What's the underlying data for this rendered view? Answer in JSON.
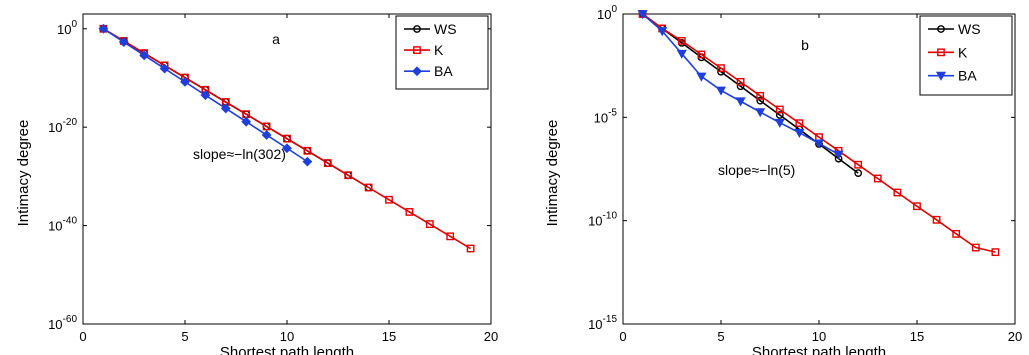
{
  "chart_data": [
    {
      "type": "line",
      "panel_label": "a",
      "xlabel": "Shortest path length",
      "ylabel": "Intimacy degree",
      "xlim": [
        0,
        20
      ],
      "ylim": [
        1e-60,
        1000.0
      ],
      "yscale": "log",
      "xticks": [
        "0",
        "5",
        "10",
        "15",
        "20"
      ],
      "yticks": [
        {
          "base": "10",
          "exp": "0",
          "value": 1
        },
        {
          "base": "10",
          "exp": "-20",
          "value": 1e-20
        },
        {
          "base": "10",
          "exp": "-40",
          "value": 1e-40
        },
        {
          "base": "10",
          "exp": "-60",
          "value": 1e-60
        }
      ],
      "annotation": "slope≈−ln(302)",
      "legend_position": "top-right",
      "series": [
        {
          "name": "WS",
          "color": "#000000",
          "marker": "circle",
          "x": [
            1,
            2,
            3,
            4,
            5,
            6,
            7,
            8,
            9,
            10,
            11,
            12,
            13,
            14
          ],
          "y": [
            1,
            0.0033,
            1.1e-05,
            3.6e-08,
            1.2e-10,
            3.9e-13,
            1.3e-15,
            4.3e-18,
            1.4e-20,
            4.7e-23,
            1.6e-25,
            5e-28,
            1.7e-30,
            5.5e-33
          ]
        },
        {
          "name": "K",
          "color": "#e00000",
          "marker": "square",
          "x": [
            1,
            2,
            3,
            4,
            5,
            6,
            7,
            8,
            9,
            10,
            11,
            12,
            13,
            14,
            15,
            16,
            17,
            18,
            19
          ],
          "y": [
            1,
            0.0033,
            1.1e-05,
            3.6e-08,
            1.2e-10,
            3.9e-13,
            1.3e-15,
            4.3e-18,
            1.4e-20,
            4.7e-23,
            1.6e-25,
            5e-28,
            1.7e-30,
            5.5e-33,
            1.8e-35,
            6e-38,
            2e-40,
            6.5e-43,
            2.2e-45
          ]
        },
        {
          "name": "BA",
          "color": "#1f3fdc",
          "marker": "diamond",
          "x": [
            1,
            2,
            3,
            4,
            5,
            6,
            7,
            8,
            9,
            10,
            11
          ],
          "y": [
            1,
            0.002,
            4e-06,
            8e-09,
            1.6e-11,
            3.2e-14,
            6.4e-17,
            1.3e-19,
            2.6e-22,
            5.2e-25,
            1e-27
          ]
        }
      ]
    },
    {
      "type": "line",
      "panel_label": "b",
      "xlabel": "Shortest path length",
      "ylabel": "Intimacy degree",
      "xlim": [
        0,
        20
      ],
      "ylim": [
        1e-15,
        1
      ],
      "yscale": "log",
      "xticks": [
        "0",
        "5",
        "10",
        "15",
        "20"
      ],
      "yticks": [
        {
          "base": "10",
          "exp": "0",
          "value": 1
        },
        {
          "base": "10",
          "exp": "-5",
          "value": 1e-05
        },
        {
          "base": "10",
          "exp": "-10",
          "value": 1e-10
        },
        {
          "base": "10",
          "exp": "-15",
          "value": 1e-15
        }
      ],
      "annotation": "slope≈−ln(5)",
      "legend_position": "top-right",
      "series": [
        {
          "name": "WS",
          "color": "#000000",
          "marker": "circle",
          "x": [
            1,
            2,
            3,
            4,
            5,
            6,
            7,
            8,
            9,
            10,
            11,
            12
          ],
          "y": [
            1,
            0.2,
            0.04,
            0.008,
            0.0016,
            0.00032,
            6.4e-05,
            1.3e-05,
            2.6e-06,
            5.1e-07,
            1e-07,
            2e-08
          ]
        },
        {
          "name": "K",
          "color": "#e00000",
          "marker": "square",
          "x": [
            1,
            2,
            3,
            4,
            5,
            6,
            7,
            8,
            9,
            10,
            11,
            12,
            13,
            14,
            15,
            16,
            17,
            18,
            19
          ],
          "y": [
            1,
            0.2,
            0.05,
            0.011,
            0.0024,
            0.00052,
            0.00011,
            2.4e-05,
            5.2e-06,
            1.1e-06,
            2.4e-07,
            5.1e-08,
            1.1e-08,
            2.3e-09,
            5e-10,
            1.1e-10,
            2.3e-11,
            5e-12,
            3e-12
          ]
        },
        {
          "name": "BA",
          "color": "#1f3fdc",
          "marker": "triangle-down",
          "x": [
            1,
            2,
            3,
            4,
            5,
            6,
            7,
            8,
            9,
            10,
            11
          ],
          "y": [
            1,
            0.15,
            0.012,
            0.00095,
            0.0002,
            6e-05,
            1.8e-05,
            5.5e-06,
            1.8e-06,
            5.5e-07,
            1.6e-07
          ]
        }
      ]
    }
  ]
}
